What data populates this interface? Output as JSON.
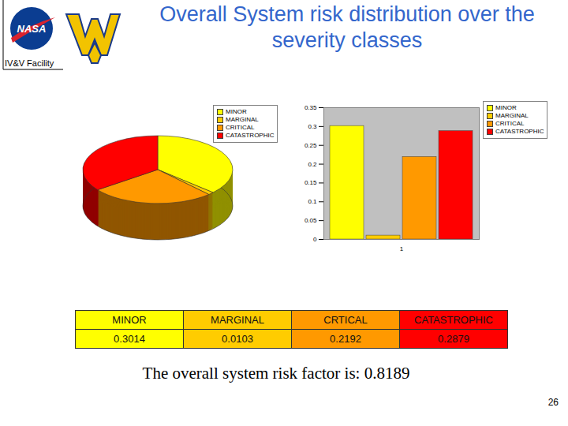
{
  "title": "Overall System risk distribution over the severity classes",
  "logo_texts": [
    "NASA",
    "IV&V Facility"
  ],
  "chart_data": [
    {
      "type": "pie",
      "categories": [
        "MINOR",
        "MARGINAL",
        "CRITICAL",
        "CATASTROPHIC"
      ],
      "values": [
        0.3014,
        0.0103,
        0.2192,
        0.2879
      ],
      "colors": [
        "#ffff00",
        "#ffcc00",
        "#ff9900",
        "#ff0000"
      ],
      "legend": "top-right"
    },
    {
      "type": "bar",
      "categories": [
        "1"
      ],
      "series": [
        {
          "name": "MINOR",
          "color": "#ffff00",
          "values": [
            0.3014
          ]
        },
        {
          "name": "MARGINAL",
          "color": "#ffcc00",
          "values": [
            0.0103
          ]
        },
        {
          "name": "CRITICAL",
          "color": "#ff9900",
          "values": [
            0.2192
          ]
        },
        {
          "name": "CATASTROPHIC",
          "color": "#ff0000",
          "values": [
            0.2879
          ]
        }
      ],
      "ylim": [
        0,
        0.35
      ],
      "yticks": [
        0,
        0.05,
        0.1,
        0.15,
        0.2,
        0.25,
        0.3,
        0.35
      ],
      "grid": false,
      "legend": "right"
    }
  ],
  "table": {
    "header": [
      "MINOR",
      "MARGINAL",
      "CRTICAL",
      "CATASTROPHIC"
    ],
    "rows": [
      [
        "0.3014",
        "0.0103",
        "0.2192",
        "0.2879"
      ]
    ],
    "colors": [
      "#ffff00",
      "#ffcc00",
      "#ff9900",
      "#ff0000"
    ]
  },
  "caption": "The overall system risk factor is: 0.8189",
  "page_number": "26"
}
